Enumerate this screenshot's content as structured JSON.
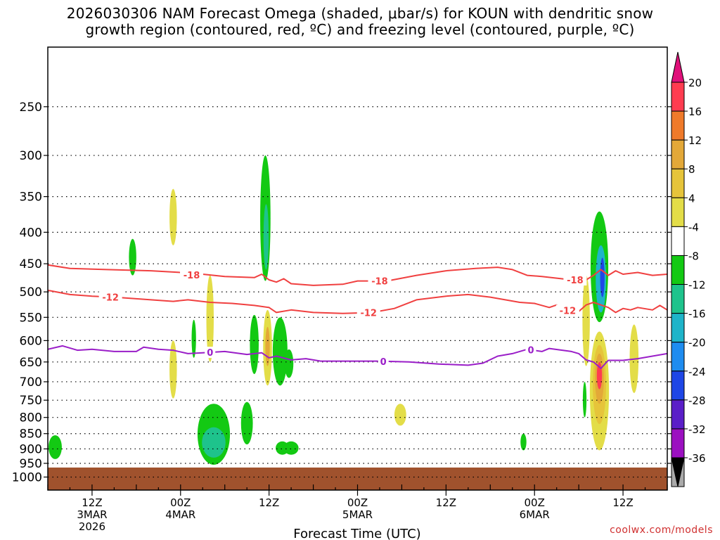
{
  "chart_data": {
    "type": "heatmap",
    "title_line1": "2026030306 NAM Forecast Omega (shaded, μbar/s) for KOUN with dendritic snow",
    "title_line2": "growth region (contoured, red, ºC) and freezing level (contoured, purple, ºC)",
    "xlabel": "Forecast Time (UTC)",
    "ylabel": "",
    "x_unit": "hours since 2026-03-03 06Z",
    "xlim": [
      0,
      84
    ],
    "ylim_hPa": [
      200,
      1050
    ],
    "y_scale": "log",
    "y_ticks": [
      250,
      300,
      350,
      400,
      450,
      500,
      550,
      600,
      650,
      700,
      750,
      800,
      850,
      900,
      950,
      1000
    ],
    "x_ticks": [
      {
        "x": 6,
        "lines": [
          "12Z",
          "3MAR",
          "2026"
        ]
      },
      {
        "x": 18,
        "lines": [
          "00Z",
          "4MAR"
        ]
      },
      {
        "x": 30,
        "lines": [
          "12Z"
        ]
      },
      {
        "x": 42,
        "lines": [
          "00Z",
          "5MAR"
        ]
      },
      {
        "x": 54,
        "lines": [
          "12Z"
        ]
      },
      {
        "x": 66,
        "lines": [
          "00Z",
          "6MAR"
        ]
      },
      {
        "x": 78,
        "lines": [
          "12Z"
        ]
      }
    ],
    "grid": true,
    "colorbar": {
      "labels": [
        "20",
        "16",
        "12",
        "8",
        "4",
        "-4",
        "-8",
        "-12",
        "-16",
        "-20",
        "-24",
        "-28",
        "-32",
        "-36"
      ],
      "colors": [
        "#ff3c50",
        "#ef7a2a",
        "#e3a838",
        "#e6c43a",
        "#e3dd48",
        "#ffffff",
        "#13c913",
        "#1ec38c",
        "#1eb4c9",
        "#1e8cf0",
        "#1e46e6",
        "#5a1ec8",
        "#9b10c0",
        "#aaaaaa"
      ],
      "top_arrow_color": "#e0107a",
      "bottom_arrow_color": "#000000"
    },
    "ground_top_hPa": 965,
    "ground_color": "#a0522d",
    "omega_blobs": [
      {
        "x": 1,
        "w": 0.9,
        "p_top": 855,
        "p_bot": 935,
        "value": -6
      },
      {
        "x": 11.5,
        "w": 0.5,
        "p_top": 410,
        "p_bot": 470,
        "value": -6
      },
      {
        "x": 17,
        "w": 0.5,
        "p_top": 340,
        "p_bot": 420,
        "value": 5
      },
      {
        "x": 17,
        "w": 0.5,
        "p_top": 600,
        "p_bot": 745,
        "value": 5
      },
      {
        "x": 19.8,
        "w": 0.3,
        "p_top": 555,
        "p_bot": 640,
        "value": -6
      },
      {
        "x": 22,
        "w": 0.5,
        "p_top": 470,
        "p_bot": 650,
        "value": 5
      },
      {
        "x": 22.5,
        "w": 2.2,
        "p_top": 760,
        "p_bot": 955,
        "value": -7
      },
      {
        "x": 22.5,
        "w": 1.6,
        "p_top": 830,
        "p_bot": 930,
        "value": -10
      },
      {
        "x": 27,
        "w": 0.8,
        "p_top": 755,
        "p_bot": 885,
        "value": -6
      },
      {
        "x": 28,
        "w": 0.6,
        "p_top": 545,
        "p_bot": 680,
        "value": -6
      },
      {
        "x": 29.5,
        "w": 0.7,
        "p_top": 300,
        "p_bot": 480,
        "value": -6
      },
      {
        "x": 29.6,
        "w": 0.35,
        "p_top": 360,
        "p_bot": 460,
        "value": -10
      },
      {
        "x": 29.8,
        "w": 0.6,
        "p_top": 535,
        "p_bot": 710,
        "value": 6
      },
      {
        "x": 29.8,
        "w": 0.3,
        "p_top": 570,
        "p_bot": 660,
        "value": 12
      },
      {
        "x": 31.5,
        "w": 1.0,
        "p_top": 550,
        "p_bot": 710,
        "value": -6
      },
      {
        "x": 32.7,
        "w": 0.6,
        "p_top": 620,
        "p_bot": 690,
        "value": -6
      },
      {
        "x": 31.8,
        "w": 0.9,
        "p_top": 875,
        "p_bot": 920,
        "value": -6
      },
      {
        "x": 33,
        "w": 1.0,
        "p_top": 875,
        "p_bot": 920,
        "value": -6
      },
      {
        "x": 47.8,
        "w": 0.8,
        "p_top": 760,
        "p_bot": 825,
        "value": 5
      },
      {
        "x": 64.5,
        "w": 0.4,
        "p_top": 850,
        "p_bot": 905,
        "value": -6
      },
      {
        "x": 72.8,
        "w": 0.25,
        "p_top": 700,
        "p_bot": 800,
        "value": -6
      },
      {
        "x": 73,
        "w": 0.5,
        "p_top": 470,
        "p_bot": 660,
        "value": 5
      },
      {
        "x": 74.8,
        "w": 1.2,
        "p_top": 370,
        "p_bot": 560,
        "value": -7
      },
      {
        "x": 75,
        "w": 0.7,
        "p_top": 420,
        "p_bot": 540,
        "value": -12
      },
      {
        "x": 75.2,
        "w": 0.3,
        "p_top": 440,
        "p_bot": 510,
        "value": -20
      },
      {
        "x": 74.8,
        "w": 1.3,
        "p_top": 580,
        "p_bot": 905,
        "value": 6
      },
      {
        "x": 74.8,
        "w": 0.9,
        "p_top": 610,
        "p_bot": 820,
        "value": 11
      },
      {
        "x": 74.8,
        "w": 0.6,
        "p_top": 630,
        "p_bot": 760,
        "value": 15
      },
      {
        "x": 74.8,
        "w": 0.35,
        "p_top": 650,
        "p_bot": 720,
        "value": 20
      },
      {
        "x": 79.5,
        "w": 0.6,
        "p_top": 565,
        "p_bot": 730,
        "value": 5
      }
    ],
    "contours": [
      {
        "name": "minus-18",
        "label": "-18",
        "color": "#f04040",
        "label_positions": [
          19.5,
          45,
          71.5
        ],
        "points": [
          [
            0,
            452
          ],
          [
            3,
            458
          ],
          [
            8,
            460
          ],
          [
            14,
            462
          ],
          [
            18,
            465
          ],
          [
            19,
            470
          ],
          [
            21,
            468
          ],
          [
            24,
            472
          ],
          [
            28,
            474
          ],
          [
            29,
            468
          ],
          [
            30,
            478
          ],
          [
            31,
            482
          ],
          [
            32,
            476
          ],
          [
            33,
            485
          ],
          [
            36,
            488
          ],
          [
            40,
            486
          ],
          [
            42,
            480
          ],
          [
            46,
            480
          ],
          [
            50,
            470
          ],
          [
            54,
            462
          ],
          [
            58,
            458
          ],
          [
            61,
            456
          ],
          [
            63,
            460
          ],
          [
            65,
            470
          ],
          [
            67,
            472
          ],
          [
            69,
            475
          ],
          [
            71,
            478
          ],
          [
            73,
            478
          ],
          [
            74,
            470
          ],
          [
            75,
            460
          ],
          [
            76,
            470
          ],
          [
            77,
            462
          ],
          [
            78,
            468
          ],
          [
            80,
            465
          ],
          [
            82,
            470
          ],
          [
            84,
            468
          ]
        ]
      },
      {
        "name": "minus-12",
        "label": "-12",
        "color": "#f04040",
        "label_positions": [
          8.5,
          43.5,
          70.5
        ],
        "points": [
          [
            0,
            497
          ],
          [
            3,
            505
          ],
          [
            6,
            508
          ],
          [
            9,
            510
          ],
          [
            14,
            515
          ],
          [
            17,
            518
          ],
          [
            19,
            515
          ],
          [
            22,
            520
          ],
          [
            25,
            522
          ],
          [
            28,
            526
          ],
          [
            30,
            530
          ],
          [
            31,
            540
          ],
          [
            33,
            535
          ],
          [
            36,
            540
          ],
          [
            40,
            542
          ],
          [
            44,
            540
          ],
          [
            47,
            532
          ],
          [
            50,
            515
          ],
          [
            54,
            508
          ],
          [
            57,
            505
          ],
          [
            60,
            510
          ],
          [
            64,
            520
          ],
          [
            66,
            522
          ],
          [
            68,
            530
          ],
          [
            69,
            525
          ],
          [
            70,
            535
          ],
          [
            72,
            538
          ],
          [
            73,
            525
          ],
          [
            74,
            520
          ],
          [
            75,
            525
          ],
          [
            76,
            530
          ],
          [
            77,
            540
          ],
          [
            78,
            532
          ],
          [
            79,
            535
          ],
          [
            80,
            530
          ],
          [
            82,
            535
          ],
          [
            83,
            526
          ],
          [
            84,
            535
          ]
        ]
      },
      {
        "name": "zero",
        "label": "0",
        "color": "#9a1ec8",
        "label_positions": [
          22,
          45.5,
          65.5
        ],
        "points": [
          [
            0,
            620
          ],
          [
            2,
            612
          ],
          [
            4,
            622
          ],
          [
            6,
            620
          ],
          [
            9,
            625
          ],
          [
            12,
            625
          ],
          [
            13,
            615
          ],
          [
            15,
            620
          ],
          [
            17,
            622
          ],
          [
            19,
            630
          ],
          [
            21,
            628
          ],
          [
            24,
            625
          ],
          [
            27,
            632
          ],
          [
            29,
            628
          ],
          [
            30,
            640
          ],
          [
            31,
            636
          ],
          [
            33,
            645
          ],
          [
            35,
            642
          ],
          [
            37,
            648
          ],
          [
            41,
            648
          ],
          [
            45,
            648
          ],
          [
            49,
            650
          ],
          [
            53,
            655
          ],
          [
            57,
            658
          ],
          [
            59,
            653
          ],
          [
            61,
            636
          ],
          [
            63,
            630
          ],
          [
            65,
            620
          ],
          [
            67,
            625
          ],
          [
            68,
            618
          ],
          [
            71,
            625
          ],
          [
            72,
            630
          ],
          [
            73,
            645
          ],
          [
            74,
            650
          ],
          [
            75,
            666
          ],
          [
            76,
            646
          ],
          [
            78,
            646
          ],
          [
            80,
            642
          ],
          [
            84,
            630
          ]
        ]
      }
    ]
  },
  "credit": "coolwx.com/models"
}
